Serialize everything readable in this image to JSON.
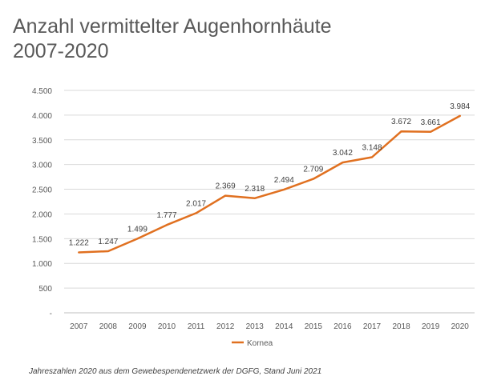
{
  "title_line1": "Anzahl vermittelter Augenhornhäute",
  "title_line2": "2007-2020",
  "note": "Jahreszahlen 2020 aus dem Gewebespendenetzwerk der DGFG, Stand Juni 2021",
  "chart_data": {
    "type": "line",
    "title": "Anzahl vermittelter Augenhornhäute 2007-2020",
    "xlabel": "",
    "ylabel": "",
    "categories": [
      "2007",
      "2008",
      "2009",
      "2010",
      "2011",
      "2012",
      "2013",
      "2014",
      "2015",
      "2016",
      "2017",
      "2018",
      "2019",
      "2020"
    ],
    "series": [
      {
        "name": "Kornea",
        "values": [
          1222,
          1247,
          1499,
          1777,
          2017,
          2369,
          2318,
          2494,
          2709,
          3042,
          3148,
          3672,
          3661,
          3984
        ],
        "data_labels": [
          "1.222",
          "1.247",
          "1.499",
          "1.777",
          "2.017",
          "2.369",
          "2.318",
          "2.494",
          "2.709",
          "3.042",
          "3.148",
          "3.672",
          "3.661",
          "3.984"
        ],
        "color": "#E07020"
      }
    ],
    "ylim": [
      0,
      4500
    ],
    "y_ticks": [
      0,
      500,
      1000,
      1500,
      2000,
      2500,
      3000,
      3500,
      4000,
      4500
    ],
    "y_tick_labels": [
      "-",
      "500",
      "1.000",
      "1.500",
      "2.000",
      "2.500",
      "3.000",
      "3.500",
      "4.000",
      "4.500"
    ],
    "grid": true,
    "legend_position": "bottom"
  }
}
